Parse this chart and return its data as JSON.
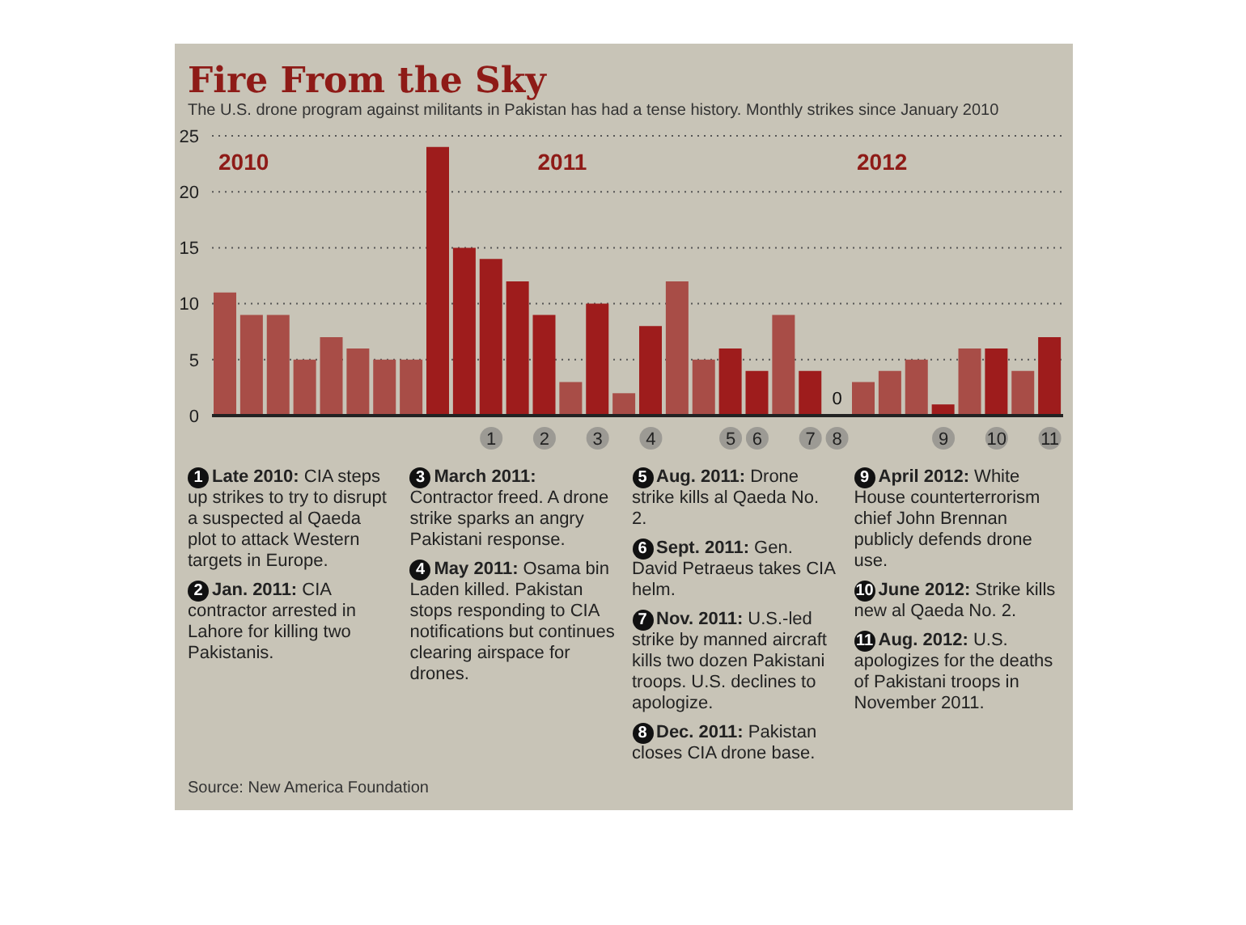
{
  "chart_data": {
    "type": "bar",
    "title": "Fire From the Sky",
    "subtitle": "The U.S. drone program against militants in Pakistan has had a tense history. Monthly strikes since January 2010",
    "categories": [
      null,
      null,
      null,
      null,
      null,
      null,
      null,
      null,
      null,
      null,
      "1",
      null,
      "2",
      null,
      "3",
      null,
      "4",
      null,
      null,
      "5",
      "6",
      null,
      "7",
      "8",
      null,
      null,
      null,
      "9",
      null,
      "10",
      null,
      "11"
    ],
    "values": [
      11,
      9,
      9,
      5,
      7,
      6,
      5,
      5,
      24,
      15,
      14,
      12,
      9,
      3,
      10,
      2,
      8,
      12,
      5,
      6,
      4,
      9,
      4,
      0,
      3,
      4,
      5,
      1,
      6,
      6,
      4,
      7
    ],
    "colors": [
      "#a84d47",
      "#a84d47",
      "#a84d47",
      "#a84d47",
      "#a84d47",
      "#a84d47",
      "#a84d47",
      "#a84d47",
      "#9e1c1c",
      "#9e1c1c",
      "#9e1c1c",
      "#9e1c1c",
      "#9e1c1c",
      "#a84d47",
      "#9e1c1c",
      "#a84d47",
      "#9e1c1c",
      "#a84d47",
      "#a84d47",
      "#9e1c1c",
      "#9e1c1c",
      "#a84d47",
      "#9e1c1c",
      "#9e1c1c",
      "#a84d47",
      "#a84d47",
      "#a84d47",
      "#9e1c1c",
      "#a84d47",
      "#9e1c1c",
      "#a84d47",
      "#9e1c1c"
    ],
    "value_labels": [
      null,
      null,
      null,
      null,
      null,
      null,
      null,
      null,
      null,
      null,
      null,
      null,
      null,
      null,
      null,
      null,
      null,
      null,
      null,
      null,
      null,
      null,
      null,
      "0",
      null,
      null,
      null,
      null,
      null,
      null,
      null,
      null
    ],
    "ylim": [
      0,
      25
    ],
    "yticks": [
      0,
      5,
      10,
      15,
      20,
      25
    ],
    "grid": "y",
    "legend": false,
    "annotations": [
      "2010",
      "2011",
      "2012",
      "1 Late 2010: CIA steps up strikes to try to disrupt a suspected al Qaeda plot to attack Western targets in Europe.",
      "2 Jan. 2011: CIA contractor arrested in Lahore for killing two Pakistanis.",
      "3 March 2011: Contractor freed. A drone strike sparks an angry Pakistani response.",
      "4 May 2011: Osama bin Laden killed. Pakistan stops responding to CIA notifications but continues clearing airspace for drones.",
      "5 Aug. 2011: Drone strike kills al Qaeda No. 2.",
      "6 Sept. 2011: Gen. David Petraeus takes CIA helm.",
      "7 Nov. 2011: U.S.-led strike by manned aircraft kills two dozen Pakistani troops. U.S. declines to apologize.",
      "8 Dec. 2011: Pakistan closes CIA drone base.",
      "9 April 2012: White House counterterrorism chief John Brennan publicly defends drone use.",
      "10 June 2012: Strike kills new al Qaeda No. 2.",
      "11 Aug. 2012: U.S. apologizes for the deaths of Pakistani troops in November 2011.",
      "Source: New America Foundation"
    ]
  }
}
